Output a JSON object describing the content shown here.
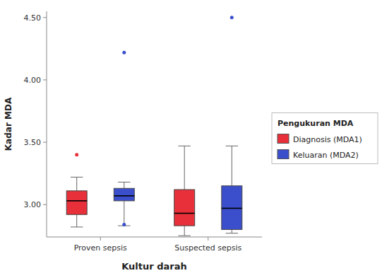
{
  "chart_data": {
    "type": "box",
    "xlabel": "Kultur darah",
    "ylabel": "Kadar MDA",
    "categories": [
      "Proven sepsis",
      "Suspected sepsis"
    ],
    "ylim": [
      2.74,
      4.55
    ],
    "yticks": [
      {
        "value": 3.0,
        "label": "3.00"
      },
      {
        "value": 3.5,
        "label": "3.50"
      },
      {
        "value": 4.0,
        "label": "4.00"
      },
      {
        "value": 4.5,
        "label": "4.50"
      }
    ],
    "grid": false,
    "legend": "right",
    "legend_title": "Pengukuran MDA",
    "series": [
      {
        "name": "Diagnosis (MDA1)",
        "color": "#E8303A",
        "whisker_low": [
          2.82,
          2.75
        ],
        "q1": [
          2.92,
          2.83
        ],
        "median": [
          3.03,
          2.93
        ],
        "q3": [
          3.11,
          3.12
        ],
        "whisker_high": [
          3.22,
          3.47
        ],
        "outliers": [
          [
            3.4
          ],
          []
        ]
      },
      {
        "name": "Keluaran (MDA2)",
        "color": "#3B4FCC",
        "whisker_low": [
          2.83,
          2.77
        ],
        "q1": [
          3.03,
          2.8
        ],
        "median": [
          3.07,
          2.97
        ],
        "q3": [
          3.13,
          3.15
        ],
        "whisker_high": [
          3.18,
          3.47
        ],
        "outliers": [
          [
            4.22,
            2.84
          ],
          [
            4.5
          ]
        ]
      }
    ]
  }
}
